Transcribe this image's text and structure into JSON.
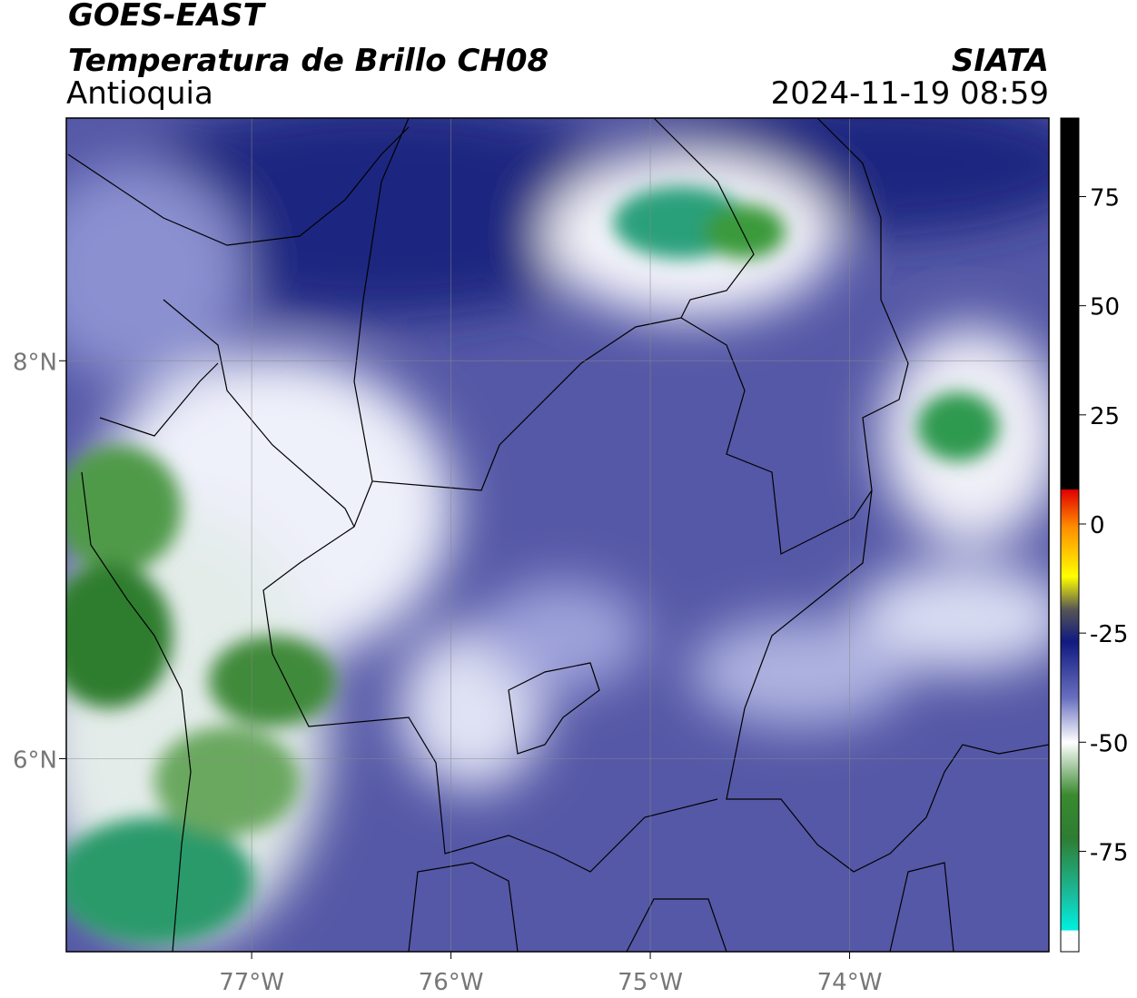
{
  "header": {
    "title": "GOES-EAST",
    "subtitle": "Temperatura de Brillo CH08",
    "region": "Antioquia",
    "source": "SIATA",
    "datetime": "2024-11-19 08:59"
  },
  "map": {
    "xlim": [
      -77.93,
      -73.0
    ],
    "ylim": [
      5.03,
      9.22
    ],
    "xticks": [
      {
        "value": -77,
        "label": "77°W"
      },
      {
        "value": -76,
        "label": "76°W"
      },
      {
        "value": -75,
        "label": "75°W"
      },
      {
        "value": -74,
        "label": "74°W"
      }
    ],
    "yticks": [
      {
        "value": 6,
        "label": "6°N"
      },
      {
        "value": 8,
        "label": "8°N"
      }
    ],
    "grid": true
  },
  "colorbar": {
    "lim": [
      -98,
      93
    ],
    "ticks": [
      75,
      50,
      25,
      0,
      -25,
      -50,
      -75
    ]
  }
}
